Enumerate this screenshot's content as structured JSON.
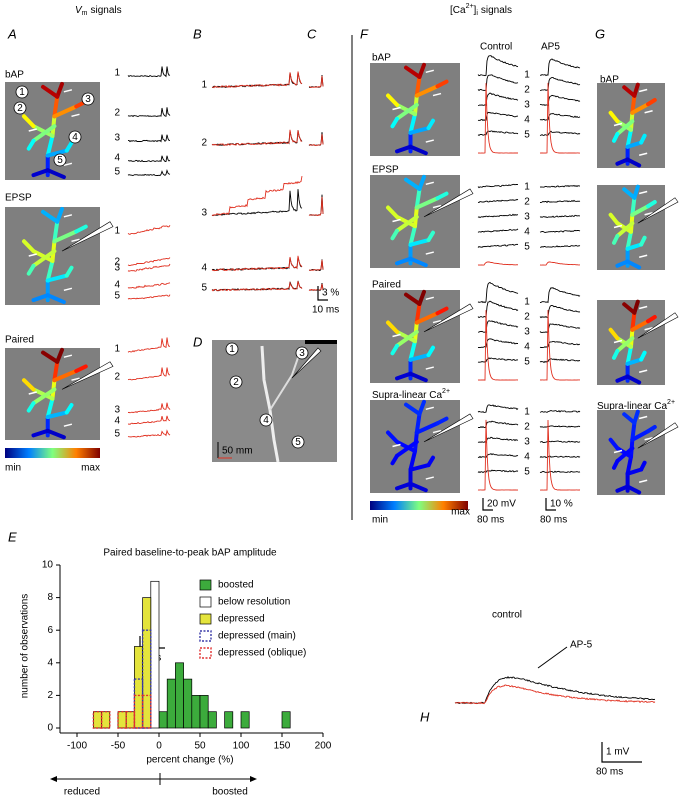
{
  "headers": {
    "vm_symbol": "V",
    "vm_subscript": "m",
    "vm_text": "signals",
    "ca_open": "[Ca",
    "ca_superscript": "2+",
    "ca_close": "]",
    "ca_subscript": "i",
    "ca_text": "signals"
  },
  "panel_letters": [
    "A",
    "B",
    "C",
    "D",
    "E",
    "F",
    "G",
    "H"
  ],
  "site_numbers": [
    "1",
    "2",
    "3",
    "4",
    "5"
  ],
  "panel_a": {
    "conditions": [
      "bAP",
      "EPSP",
      "Paired"
    ],
    "colorbar": {
      "min": "min",
      "max": "max"
    },
    "scale": {
      "amplitude": "3%",
      "time": "10 ms"
    }
  },
  "panel_b": {
    "scale": {
      "amplitude": "3 %",
      "time": "10 ms"
    }
  },
  "panel_d": {
    "scale": "50 mm"
  },
  "panel_f": {
    "columns": [
      "Control",
      "AP5"
    ],
    "conditions": [
      "bAP",
      "EPSP",
      "Paired",
      "Supra-linear Ca"
    ],
    "ca_superscript": "2+",
    "colorbar": {
      "min": "min",
      "max": "max"
    },
    "scale_control": {
      "amplitude": "20 mV",
      "time": "80 ms"
    },
    "scale_ap5": {
      "amplitude": "10 %",
      "time": "80 ms"
    }
  },
  "panel_h": {
    "traces": [
      "control",
      "AP-5"
    ],
    "scale": {
      "amplitude": "1 mV",
      "time": "80 ms"
    }
  },
  "chart_data": {
    "type": "histogram",
    "title": "Paired baseline-to-peak bAP amplitude",
    "x_label": "percent change (%)",
    "y_label": "number of observations",
    "bins": [
      -80,
      -70,
      -60,
      -50,
      -40,
      -30,
      -20,
      -10,
      0,
      10,
      20,
      30,
      40,
      50,
      60,
      70,
      80,
      90,
      100,
      110,
      120,
      130,
      140,
      150,
      160
    ],
    "series": [
      {
        "name": "boosted",
        "color": "#3cab3c",
        "dashed": false,
        "values": [
          0,
          0,
          0,
          0,
          0,
          0,
          0,
          0,
          1,
          3,
          4,
          3,
          2,
          2,
          1,
          0,
          1,
          0,
          1,
          0,
          0,
          0,
          0,
          1
        ]
      },
      {
        "name": "below resolution",
        "color": "#ffffff",
        "dashed": false,
        "values": [
          0,
          0,
          0,
          0,
          0,
          0,
          0,
          9,
          0,
          0,
          0,
          0,
          0,
          0,
          0,
          0,
          0,
          0,
          0,
          0,
          0,
          0,
          0,
          0
        ]
      },
      {
        "name": "depressed",
        "color": "#e4e43c",
        "dashed": false,
        "values": [
          1,
          1,
          0,
          1,
          1,
          5,
          8,
          0,
          0,
          0,
          0,
          0,
          0,
          0,
          0,
          0,
          0,
          0,
          0,
          0,
          0,
          0,
          0,
          0
        ]
      },
      {
        "name": "depressed (main)",
        "color": "#3a3aa8",
        "dashed": true,
        "values": [
          0,
          0,
          0,
          0,
          0,
          3,
          6,
          0,
          0,
          0,
          0,
          0,
          0,
          0,
          0,
          0,
          0,
          0,
          0,
          0,
          0,
          0,
          0,
          0
        ]
      },
      {
        "name": "depressed (oblique)",
        "color": "#e03030",
        "dashed": true,
        "values": [
          1,
          1,
          0,
          1,
          1,
          2,
          2,
          0,
          0,
          0,
          0,
          0,
          0,
          0,
          0,
          0,
          0,
          0,
          0,
          0,
          0,
          0,
          0,
          0
        ]
      }
    ],
    "xlim": [
      -100,
      200
    ],
    "xticks": [
      -100,
      -50,
      0,
      50,
      100,
      150,
      200
    ],
    "ylim": [
      0,
      10
    ],
    "yticks": [
      0,
      2,
      4,
      6,
      8,
      10
    ],
    "legend": "upper right",
    "direction_labels": [
      "reduced",
      "boosted"
    ]
  }
}
